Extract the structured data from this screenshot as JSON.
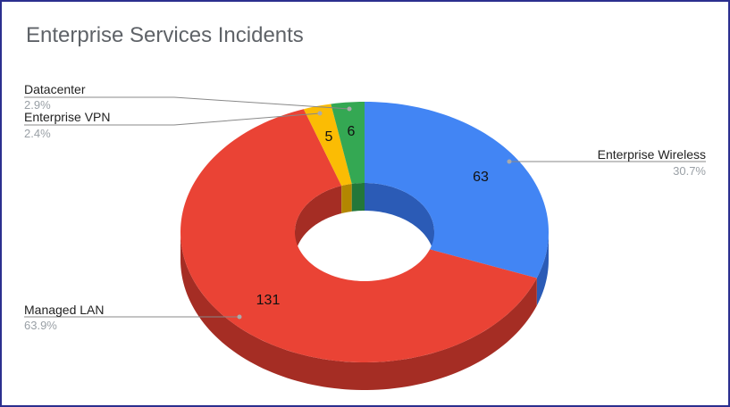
{
  "chart_data": {
    "type": "pie",
    "variant": "3d-donut",
    "title": "Enterprise Services Incidents",
    "slices": [
      {
        "name": "Enterprise Wireless",
        "value": 63,
        "percent_label": "30.7%",
        "color": "#4285f4",
        "side_color": "#2b5bb6"
      },
      {
        "name": "Managed LAN",
        "value": 131,
        "percent_label": "63.9%",
        "color": "#ea4335",
        "side_color": "#a52d24"
      },
      {
        "name": "Enterprise VPN",
        "value": 5,
        "percent_label": "2.4%",
        "color": "#fbbc04",
        "side_color": "#b38600"
      },
      {
        "name": "Datacenter",
        "value": 6,
        "percent_label": "2.9%",
        "color": "#34a853",
        "side_color": "#23773a"
      }
    ],
    "legend": "callout labels outside the donut"
  },
  "colors": {
    "frame_border": "#2b2f8f",
    "title": "#5f6368",
    "label": "#222222",
    "percent": "#9aa0a6",
    "leader_line": "#888888"
  }
}
